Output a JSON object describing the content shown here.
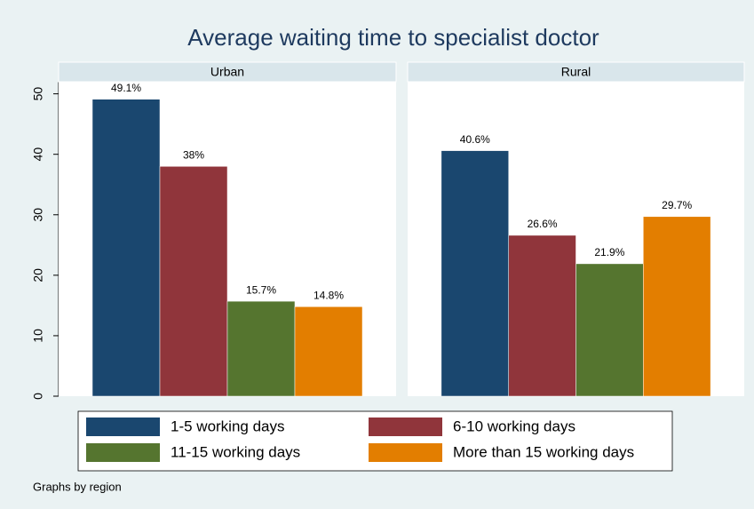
{
  "chart_data": {
    "type": "bar",
    "title": "Average waiting time to specialist doctor",
    "note": "Graphs by region",
    "categories": [
      "Urban",
      "Rural"
    ],
    "ylim": [
      0,
      52
    ],
    "yticks": [
      0,
      10,
      20,
      30,
      40,
      50
    ],
    "series": [
      {
        "name": "1-5 working days",
        "color": "#1a476f",
        "values": [
          49.1,
          40.6
        ],
        "value_labels": [
          "49.1%",
          "40.6%"
        ]
      },
      {
        "name": "6-10 working days",
        "color": "#90353b",
        "values": [
          38,
          26.6
        ],
        "value_labels": [
          "38%",
          "26.6%"
        ]
      },
      {
        "name": "11-15 working days",
        "color": "#55752f",
        "values": [
          15.7,
          21.9
        ],
        "value_labels": [
          "15.7%",
          "21.9%"
        ]
      },
      {
        "name": "More than 15 working days",
        "color": "#e37e00",
        "values": [
          14.8,
          29.7
        ],
        "value_labels": [
          "14.8%",
          "29.7%"
        ]
      }
    ]
  }
}
